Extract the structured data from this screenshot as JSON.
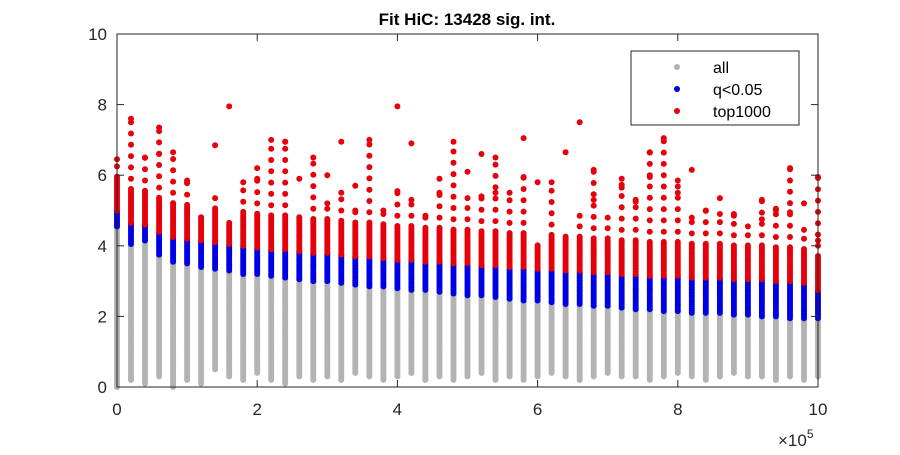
{
  "chart_data": {
    "type": "scatter",
    "title": "Fit HiC: 13428 sig. int.",
    "xlabel": "",
    "ylabel": "",
    "x_exponent_label": "×10",
    "x_exponent_power": "5",
    "xlim": [
      0,
      1000000
    ],
    "ylim": [
      0,
      10
    ],
    "x_ticks": [
      0,
      200000,
      400000,
      600000,
      800000,
      1000000
    ],
    "x_tick_labels": [
      "0",
      "2",
      "4",
      "6",
      "8",
      "10"
    ],
    "y_ticks": [
      0,
      2,
      4,
      6,
      8,
      10
    ],
    "y_tick_labels": [
      "0",
      "2",
      "4",
      "6",
      "8",
      "10"
    ],
    "grid": false,
    "legend_position": "top-right",
    "bin_step": 20000,
    "series": [
      {
        "name": "all",
        "color": "#b3b3b3",
        "y_bottom": [
          0.0,
          0.2,
          0.1,
          0.3,
          0.0,
          0.2,
          0.1,
          0.5,
          0.3,
          0.2,
          0.4,
          0.2,
          0.1,
          0.3,
          0.2,
          0.3,
          0.2,
          0.4,
          0.3,
          0.2,
          0.3,
          0.4,
          0.2,
          0.3,
          0.2,
          0.3,
          0.4,
          0.2,
          0.3,
          0.2,
          0.3,
          0.4,
          0.3,
          0.2,
          0.3,
          0.4,
          0.3,
          0.3,
          0.2,
          0.3,
          0.4,
          0.3,
          0.2,
          0.3,
          0.4,
          0.3,
          0.3,
          0.2,
          0.3,
          0.2,
          0.3
        ],
        "y_top": [
          4.55,
          4.05,
          4.15,
          3.75,
          3.55,
          3.5,
          3.4,
          3.35,
          3.3,
          3.2,
          3.2,
          3.15,
          3.1,
          3.05,
          3.0,
          3.0,
          2.95,
          2.9,
          2.85,
          2.85,
          2.8,
          2.75,
          2.75,
          2.7,
          2.65,
          2.6,
          2.6,
          2.55,
          2.5,
          2.45,
          2.45,
          2.4,
          2.35,
          2.35,
          2.3,
          2.3,
          2.25,
          2.2,
          2.2,
          2.15,
          2.15,
          2.1,
          2.1,
          2.1,
          2.05,
          2.05,
          2.0,
          2.0,
          1.95,
          1.95,
          1.95
        ]
      },
      {
        "name": "q<0.05",
        "color": "#0000e6",
        "y_top": [
          5.0,
          4.65,
          4.6,
          4.4,
          4.25,
          4.2,
          4.15,
          4.1,
          4.05,
          4.0,
          3.95,
          3.9,
          3.9,
          3.85,
          3.8,
          3.8,
          3.75,
          3.7,
          3.7,
          3.65,
          3.6,
          3.6,
          3.55,
          3.55,
          3.5,
          3.5,
          3.45,
          3.45,
          3.4,
          3.4,
          3.35,
          3.35,
          3.3,
          3.3,
          3.25,
          3.25,
          3.2,
          3.2,
          3.15,
          3.15,
          3.15,
          3.1,
          3.1,
          3.1,
          3.05,
          3.05,
          3.05,
          3.0,
          3.0,
          2.95,
          2.75
        ]
      },
      {
        "name": "top1000",
        "color": "#e6000b",
        "y_top": [
          6.45,
          7.6,
          6.5,
          7.35,
          6.65,
          5.8,
          4.85,
          5.35,
          4.65,
          5.8,
          5.9,
          7.0,
          6.95,
          5.0,
          6.5,
          5.2,
          5.5,
          5.0,
          7.0,
          5.0,
          5.55,
          5.3,
          4.85,
          5.5,
          6.95,
          5.35,
          5.4,
          6.5,
          5.5,
          5.95,
          4.05,
          5.8,
          4.45,
          4.85,
          6.15,
          4.8,
          5.9,
          5.3,
          6.65,
          7.05,
          5.85,
          4.8,
          5.0,
          4.9,
          4.85,
          4.55,
          5.3,
          5.0,
          6.2,
          4.45,
          5.95
        ],
        "extra_points": [
          [
            160000,
            7.95
          ],
          [
            400000,
            7.95
          ],
          [
            240000,
            6.95
          ],
          [
            320000,
            6.95
          ],
          [
            420000,
            6.9
          ],
          [
            580000,
            7.05
          ],
          [
            660000,
            7.5
          ],
          [
            140000,
            6.85
          ],
          [
            300000,
            6.0
          ],
          [
            520000,
            6.6
          ],
          [
            640000,
            6.65
          ],
          [
            500000,
            6.1
          ],
          [
            820000,
            6.15
          ],
          [
            720000,
            5.65
          ],
          [
            980000,
            5.2
          ],
          [
            940000,
            5.05
          ],
          [
            860000,
            5.35
          ],
          [
            760000,
            5.95
          ],
          [
            60000,
            6.6
          ],
          [
            100000,
            5.85
          ],
          [
            200000,
            6.2
          ],
          [
            260000,
            5.9
          ],
          [
            340000,
            5.7
          ],
          [
            460000,
            5.9
          ],
          [
            540000,
            5.5
          ],
          [
            600000,
            5.8
          ],
          [
            680000,
            5.3
          ],
          [
            740000,
            5.25
          ],
          [
            800000,
            5.5
          ],
          [
            880000,
            4.9
          ],
          [
            920000,
            4.75
          ],
          [
            960000,
            4.95
          ],
          [
            1000000,
            4.15
          ]
        ]
      }
    ]
  }
}
